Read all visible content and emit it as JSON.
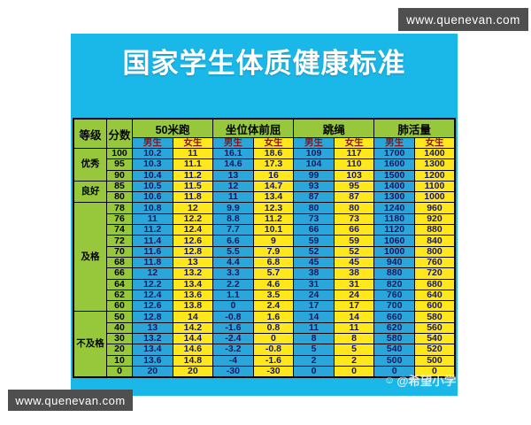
{
  "watermarks": {
    "top_right": "www.quenevan.com",
    "bottom_left": "www.quenevan.com",
    "bottom_right": "@希望小学"
  },
  "colors": {
    "poster_cyan": "#1ab7e9",
    "cell_green": "#97c83c",
    "cell_blue": "#2ba6db",
    "cell_yellow": "#ffe71d",
    "gender_header_red": "#8b1414",
    "number_navy": "#17175e",
    "watermark_gray": "#4f4f4f",
    "title_white": "#ffffff"
  },
  "chart_data": {
    "type": "table",
    "title": "国家学生体质健康标准",
    "header": {
      "grade": "等级",
      "score": "分数",
      "events": [
        "50米跑",
        "坐位体前屈",
        "跳绳",
        "肺活量"
      ],
      "male": "男生",
      "female": "女生"
    },
    "groups": [
      {
        "label": "优秀",
        "rows": [
          {
            "score": "100",
            "values": [
              "10.2",
              "11",
              "16.1",
              "18.6",
              "109",
              "117",
              "1700",
              "1400"
            ]
          },
          {
            "score": "95",
            "values": [
              "10.3",
              "11.1",
              "14.6",
              "17.3",
              "104",
              "110",
              "1600",
              "1300"
            ]
          },
          {
            "score": "90",
            "values": [
              "10.4",
              "11.2",
              "13",
              "16",
              "99",
              "103",
              "1500",
              "1200"
            ]
          }
        ]
      },
      {
        "label": "良好",
        "rows": [
          {
            "score": "85",
            "values": [
              "10.5",
              "11.5",
              "12",
              "14.7",
              "93",
              "95",
              "1400",
              "1100"
            ]
          },
          {
            "score": "80",
            "values": [
              "10.6",
              "11.8",
              "11",
              "13.4",
              "87",
              "87",
              "1300",
              "1000"
            ]
          }
        ]
      },
      {
        "label": "及格",
        "rows": [
          {
            "score": "78",
            "values": [
              "10.8",
              "12",
              "9.9",
              "12.3",
              "80",
              "80",
              "1240",
              "960"
            ]
          },
          {
            "score": "76",
            "values": [
              "11",
              "12.2",
              "8.8",
              "11.2",
              "73",
              "73",
              "1180",
              "920"
            ]
          },
          {
            "score": "74",
            "values": [
              "11.2",
              "12.4",
              "7.7",
              "10.1",
              "66",
              "66",
              "1120",
              "880"
            ]
          },
          {
            "score": "72",
            "values": [
              "11.4",
              "12.6",
              "6.6",
              "9",
              "59",
              "59",
              "1060",
              "840"
            ]
          },
          {
            "score": "70",
            "values": [
              "11.6",
              "12.8",
              "5.5",
              "7.9",
              "52",
              "52",
              "1000",
              "800"
            ]
          },
          {
            "score": "68",
            "values": [
              "11.8",
              "13",
              "4.4",
              "6.8",
              "45",
              "45",
              "940",
              "760"
            ]
          },
          {
            "score": "66",
            "values": [
              "12",
              "13.2",
              "3.3",
              "5.7",
              "38",
              "38",
              "880",
              "720"
            ]
          },
          {
            "score": "64",
            "values": [
              "12.2",
              "13.4",
              "2.2",
              "4.6",
              "31",
              "31",
              "820",
              "680"
            ]
          },
          {
            "score": "62",
            "values": [
              "12.4",
              "13.6",
              "1.1",
              "3.5",
              "24",
              "24",
              "760",
              "640"
            ]
          },
          {
            "score": "60",
            "values": [
              "12.6",
              "13.8",
              "0",
              "2.4",
              "17",
              "17",
              "700",
              "600"
            ]
          }
        ]
      },
      {
        "label": "不及格",
        "rows": [
          {
            "score": "50",
            "values": [
              "12.8",
              "14",
              "-0.8",
              "1.6",
              "14",
              "14",
              "660",
              "580"
            ]
          },
          {
            "score": "40",
            "values": [
              "13",
              "14.2",
              "-1.6",
              "0.8",
              "11",
              "11",
              "620",
              "560"
            ]
          },
          {
            "score": "30",
            "values": [
              "13.2",
              "14.4",
              "-2.4",
              "0",
              "8",
              "8",
              "580",
              "540"
            ]
          },
          {
            "score": "20",
            "values": [
              "13.4",
              "14.6",
              "-3.2",
              "-0.8",
              "5",
              "5",
              "540",
              "520"
            ]
          },
          {
            "score": "10",
            "values": [
              "13.6",
              "14.8",
              "-4",
              "-1.6",
              "2",
              "2",
              "500",
              "500"
            ]
          },
          {
            "score": "0",
            "values": [
              "20",
              "20",
              "-30",
              "-30",
              "0",
              "0",
              "0",
              "0"
            ]
          }
        ]
      }
    ]
  }
}
